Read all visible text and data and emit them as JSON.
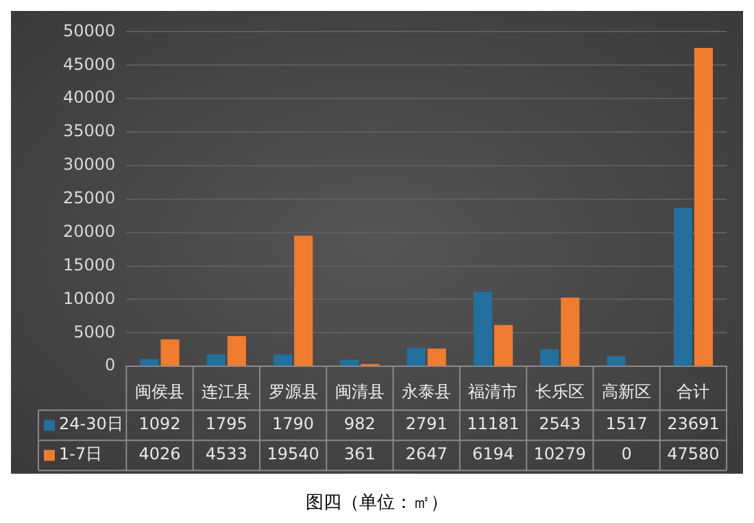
{
  "chart_data": {
    "type": "bar",
    "categories": [
      "闽侯县",
      "连江县",
      "罗源县",
      "闽清县",
      "永泰县",
      "福清市",
      "长乐区",
      "高新区",
      "合计"
    ],
    "series": [
      {
        "name": "24-30日",
        "color": "#23709f",
        "values": [
          1092,
          1795,
          1790,
          982,
          2791,
          11181,
          2543,
          1517,
          23691
        ]
      },
      {
        "name": "1-7日",
        "color": "#f07c2e",
        "values": [
          4026,
          4533,
          19540,
          361,
          2647,
          6194,
          10279,
          0,
          47580
        ]
      }
    ],
    "ylim": [
      0,
      50000
    ],
    "yticks": [
      0,
      5000,
      10000,
      15000,
      20000,
      25000,
      30000,
      35000,
      40000,
      45000,
      50000
    ],
    "grid": "y",
    "legend": "bottom",
    "data_labels": true,
    "annotations": [
      "图四（单位：㎡）"
    ]
  }
}
